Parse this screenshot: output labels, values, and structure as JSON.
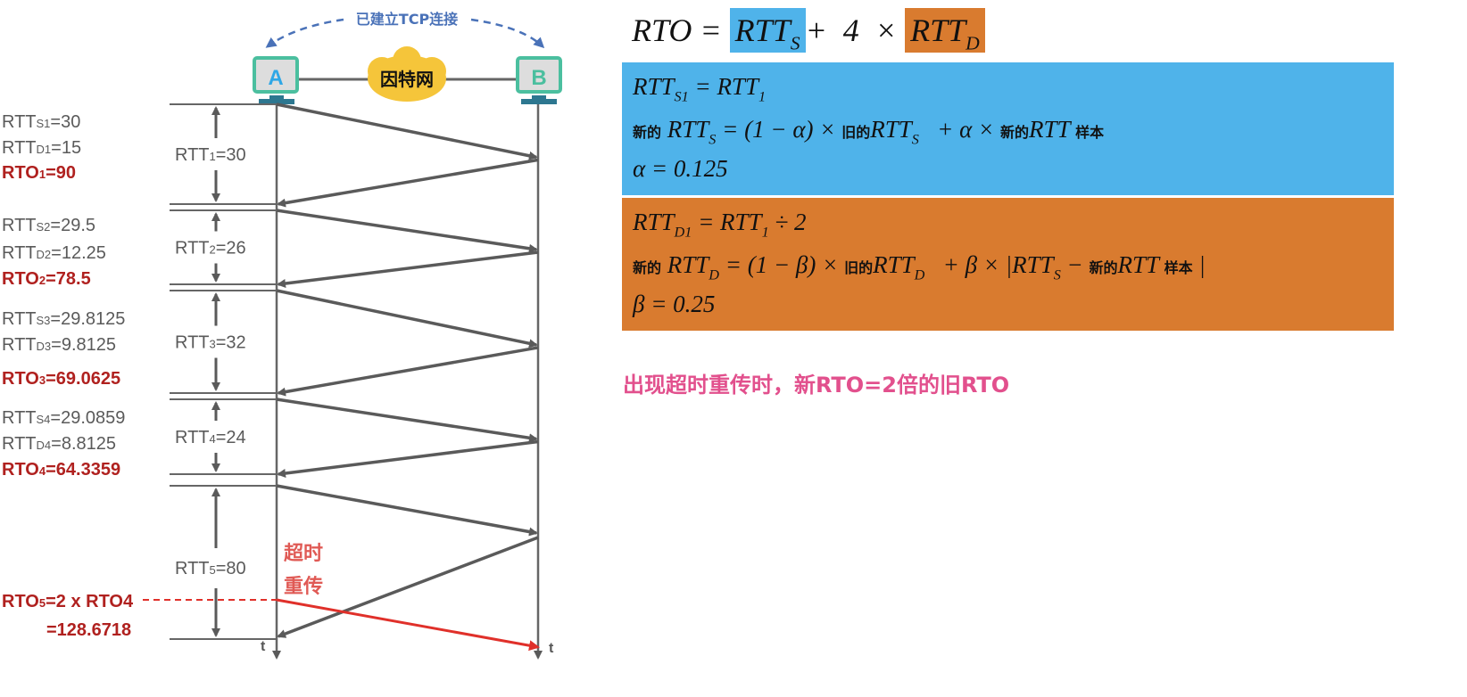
{
  "colors": {
    "blue": "#4fb3ea",
    "orange": "#d97b2f",
    "gray": "#5a5a5a",
    "red": "#b0211f",
    "timeout_red": "#e0413a",
    "pink": "#e2508d",
    "host_teal": "#4bbf9f",
    "host_stand": "#2d7790",
    "cloud": "#f5c53a",
    "connection_arrow": "#4a72b8"
  },
  "header": {
    "connection_label": "已建立TCP连接",
    "host_a": "A",
    "host_b": "B",
    "internet_label": "因特网",
    "time_axis": "t"
  },
  "rounds": [
    {
      "rtt_s": {
        "base": "RTT",
        "sub": "S1",
        "val": "=30"
      },
      "rtt_d": {
        "base": "RTT",
        "sub": "D1",
        "val": "=15"
      },
      "rto": {
        "base": "RTO",
        "sub": "1",
        "val": "=90"
      },
      "rtt": {
        "base": "RTT",
        "sub": "1",
        "val": "=30"
      }
    },
    {
      "rtt_s": {
        "base": "RTT",
        "sub": "S2",
        "val": "=29.5"
      },
      "rtt_d": {
        "base": "RTT",
        "sub": "D2",
        "val": "=12.25"
      },
      "rto": {
        "base": "RTO",
        "sub": "2",
        "val": "=78.5"
      },
      "rtt": {
        "base": "RTT",
        "sub": "2",
        "val": "=26"
      }
    },
    {
      "rtt_s": {
        "base": "RTT",
        "sub": "S3",
        "val": "=29.8125"
      },
      "rtt_d": {
        "base": "RTT",
        "sub": "D3",
        "val": "=9.8125"
      },
      "rto": {
        "base": "RTO",
        "sub": "3",
        "val": "=69.0625"
      },
      "rtt": {
        "base": "RTT",
        "sub": "3",
        "val": "=32"
      }
    },
    {
      "rtt_s": {
        "base": "RTT",
        "sub": "S4",
        "val": "=29.0859"
      },
      "rtt_d": {
        "base": "RTT",
        "sub": "D4",
        "val": "=8.8125"
      },
      "rto": {
        "base": "RTO",
        "sub": "4",
        "val": "=64.3359"
      },
      "rtt": {
        "base": "RTT",
        "sub": "4",
        "val": "=24"
      }
    }
  ],
  "round5": {
    "rtt": {
      "base": "RTT",
      "sub": "5",
      "val": "=80"
    },
    "rto_line1": {
      "base": "RTO",
      "sub": "5",
      "val": "=2 x RTO4"
    },
    "rto_line2": "=128.6718",
    "timeout_line1": "超时",
    "timeout_line2": "重传"
  },
  "formulas": {
    "top": {
      "lhs": "RTO",
      "eq": " = ",
      "rtts": "RTT",
      "rtts_sub": "S",
      "plus": "+  4  × ",
      "rttd": "RTT",
      "rttd_sub": "D"
    },
    "blue": {
      "line1": {
        "a": "RTT",
        "a_sub": "S1",
        "b": " = RTT",
        "b_sub": "1"
      },
      "line2": {
        "new": "新的",
        "a": " RTT",
        "a_sub": "S",
        "b": " = (1 − α) × ",
        "old": "旧的",
        "c": "RTT",
        "c_sub": "S",
        "d": "   + α × ",
        "new2": "新的",
        "e": "RTT",
        "sample": " 样本"
      },
      "line3": "α = 0.125"
    },
    "orange": {
      "line1": {
        "a": "RTT",
        "a_sub": "D1",
        "b": " = RTT",
        "b_sub": "1",
        "c": " ÷ 2"
      },
      "line2": {
        "new": "新的",
        "a": " RTT",
        "a_sub": "D",
        "b": " = (1 − β) × ",
        "old": "旧的",
        "c": "RTT",
        "c_sub": "D",
        "d": "   + β × |RTT",
        "d_sub": "S",
        "e": " − ",
        "new2": "新的",
        "f": "RTT",
        "sample": " 样本",
        "bar": " |"
      },
      "line3": "β = 0.25"
    }
  },
  "note": "出现超时重传时，新RTO=2倍的旧RTO"
}
